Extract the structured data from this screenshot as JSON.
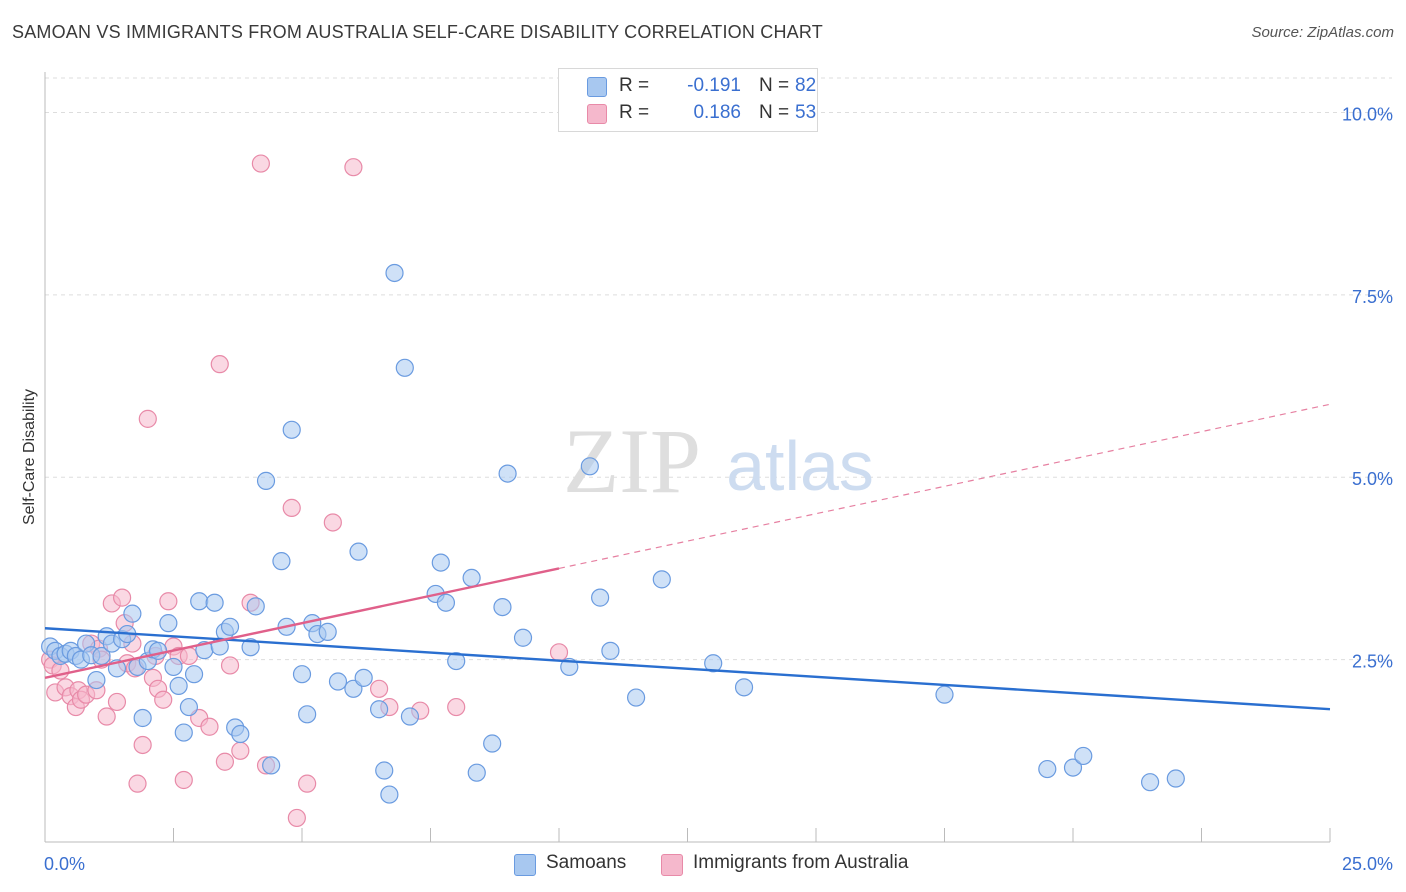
{
  "header": {
    "title": "SAMOAN VS IMMIGRANTS FROM AUSTRALIA SELF-CARE DISABILITY CORRELATION CHART",
    "source": "Source: ZipAtlas.com"
  },
  "legend": {
    "r_label": "R =",
    "n_label": "N =",
    "rows": [
      {
        "r": "-0.191",
        "n": "82",
        "color": "#a8c8f0"
      },
      {
        "r": "0.186",
        "n": "53",
        "color": "#f5b8cc"
      }
    ]
  },
  "bottom_legend": [
    {
      "label": "Samoans",
      "color": "#a8c8f0"
    },
    {
      "label": "Immigrants from Australia",
      "color": "#f5b8cc"
    }
  ],
  "watermark": {
    "part1": "ZIP",
    "part2": "atlas"
  },
  "colors": {
    "samoans_fill": "#a8c8f0",
    "samoans_stroke": "#6a9be0",
    "samoans_line": "#2a6fd0",
    "australia_fill": "#f5b8cc",
    "australia_stroke": "#e88aa8",
    "australia_line": "#e0608a",
    "tick_label": "#3a6fd0",
    "grid": "#dddddd"
  },
  "chart_data": {
    "type": "scatter",
    "title": "SAMOAN VS IMMIGRANTS FROM AUSTRALIA SELF-CARE DISABILITY CORRELATION CHART",
    "xlabel": "",
    "ylabel": "Self-Care Disability",
    "xlim": [
      0,
      25
    ],
    "ylim": [
      0,
      10.5
    ],
    "x_tick_labels": [
      {
        "value": 0,
        "label": "0.0%"
      },
      {
        "value": 25,
        "label": "25.0%"
      }
    ],
    "y_tick_labels": [
      {
        "value": 2.5,
        "label": "2.5%"
      },
      {
        "value": 5.0,
        "label": "5.0%"
      },
      {
        "value": 7.5,
        "label": "7.5%"
      },
      {
        "value": 10.0,
        "label": "10.0%"
      }
    ],
    "grid": true,
    "series": [
      {
        "name": "Samoans",
        "r": -0.191,
        "n": 82,
        "trend": {
          "x": [
            0,
            25
          ],
          "y": [
            2.93,
            1.82
          ],
          "solid_until": 25
        },
        "points": [
          [
            0.1,
            2.68
          ],
          [
            0.2,
            2.62
          ],
          [
            0.3,
            2.55
          ],
          [
            0.4,
            2.58
          ],
          [
            0.5,
            2.62
          ],
          [
            0.6,
            2.55
          ],
          [
            0.7,
            2.5
          ],
          [
            0.8,
            2.72
          ],
          [
            0.9,
            2.56
          ],
          [
            1.0,
            2.22
          ],
          [
            1.1,
            2.55
          ],
          [
            1.2,
            2.82
          ],
          [
            1.3,
            2.72
          ],
          [
            1.4,
            2.38
          ],
          [
            1.5,
            2.78
          ],
          [
            1.6,
            2.85
          ],
          [
            1.7,
            3.13
          ],
          [
            1.8,
            2.4
          ],
          [
            1.9,
            1.7
          ],
          [
            2.0,
            2.48
          ],
          [
            2.1,
            2.64
          ],
          [
            2.2,
            2.62
          ],
          [
            2.4,
            3.0
          ],
          [
            2.5,
            2.4
          ],
          [
            2.6,
            2.14
          ],
          [
            2.7,
            1.5
          ],
          [
            2.8,
            1.85
          ],
          [
            2.9,
            2.3
          ],
          [
            3.0,
            3.3
          ],
          [
            3.1,
            2.63
          ],
          [
            3.3,
            3.28
          ],
          [
            3.4,
            2.68
          ],
          [
            3.5,
            2.88
          ],
          [
            3.6,
            2.95
          ],
          [
            3.7,
            1.57
          ],
          [
            3.8,
            1.48
          ],
          [
            4.0,
            2.67
          ],
          [
            4.1,
            3.23
          ],
          [
            4.3,
            4.95
          ],
          [
            4.4,
            1.05
          ],
          [
            4.6,
            3.85
          ],
          [
            4.7,
            2.95
          ],
          [
            4.8,
            5.65
          ],
          [
            5.0,
            2.3
          ],
          [
            5.1,
            1.75
          ],
          [
            5.2,
            3.0
          ],
          [
            5.3,
            2.85
          ],
          [
            5.5,
            2.88
          ],
          [
            5.7,
            2.2
          ],
          [
            6.0,
            2.1
          ],
          [
            6.1,
            3.98
          ],
          [
            6.2,
            2.25
          ],
          [
            6.5,
            1.82
          ],
          [
            6.6,
            0.98
          ],
          [
            6.7,
            0.65
          ],
          [
            6.8,
            7.8
          ],
          [
            7.0,
            6.5
          ],
          [
            7.1,
            1.72
          ],
          [
            7.6,
            3.4
          ],
          [
            7.7,
            3.83
          ],
          [
            7.8,
            3.28
          ],
          [
            8.0,
            2.48
          ],
          [
            8.3,
            3.62
          ],
          [
            8.4,
            0.95
          ],
          [
            8.7,
            1.35
          ],
          [
            8.9,
            3.22
          ],
          [
            9.0,
            5.05
          ],
          [
            9.3,
            2.8
          ],
          [
            10.2,
            2.4
          ],
          [
            10.6,
            5.15
          ],
          [
            10.8,
            3.35
          ],
          [
            11.0,
            2.62
          ],
          [
            11.5,
            1.98
          ],
          [
            12.0,
            3.6
          ],
          [
            13.0,
            2.45
          ],
          [
            13.6,
            2.12
          ],
          [
            17.5,
            2.02
          ],
          [
            19.5,
            1.0
          ],
          [
            20.0,
            1.02
          ],
          [
            20.2,
            1.18
          ],
          [
            21.5,
            0.82
          ],
          [
            22.0,
            0.87
          ]
        ]
      },
      {
        "name": "Immigrants from Australia",
        "r": 0.186,
        "n": 53,
        "trend": {
          "x": [
            0,
            25
          ],
          "y": [
            2.25,
            6.0
          ],
          "solid_until": 10.0
        },
        "points": [
          [
            0.1,
            2.5
          ],
          [
            0.15,
            2.42
          ],
          [
            0.2,
            2.05
          ],
          [
            0.3,
            2.35
          ],
          [
            0.4,
            2.12
          ],
          [
            0.5,
            2.0
          ],
          [
            0.6,
            1.85
          ],
          [
            0.65,
            2.08
          ],
          [
            0.7,
            1.95
          ],
          [
            0.8,
            2.02
          ],
          [
            0.9,
            2.72
          ],
          [
            1.0,
            2.08
          ],
          [
            1.05,
            2.65
          ],
          [
            1.1,
            2.5
          ],
          [
            1.2,
            1.72
          ],
          [
            1.3,
            3.27
          ],
          [
            1.4,
            1.92
          ],
          [
            1.5,
            3.35
          ],
          [
            1.55,
            3.0
          ],
          [
            1.6,
            2.45
          ],
          [
            1.7,
            2.72
          ],
          [
            1.75,
            2.38
          ],
          [
            1.8,
            0.8
          ],
          [
            1.9,
            1.33
          ],
          [
            2.0,
            5.8
          ],
          [
            2.1,
            2.25
          ],
          [
            2.15,
            2.55
          ],
          [
            2.2,
            2.1
          ],
          [
            2.3,
            1.95
          ],
          [
            2.4,
            3.3
          ],
          [
            2.5,
            2.68
          ],
          [
            2.6,
            2.55
          ],
          [
            2.7,
            0.85
          ],
          [
            2.8,
            2.55
          ],
          [
            3.0,
            1.7
          ],
          [
            3.2,
            1.58
          ],
          [
            3.4,
            6.55
          ],
          [
            3.5,
            1.1
          ],
          [
            3.6,
            2.42
          ],
          [
            3.8,
            1.25
          ],
          [
            4.0,
            3.28
          ],
          [
            4.3,
            1.05
          ],
          [
            4.2,
            9.3
          ],
          [
            4.8,
            4.58
          ],
          [
            4.9,
            0.33
          ],
          [
            5.1,
            0.8
          ],
          [
            5.6,
            4.38
          ],
          [
            6.0,
            9.25
          ],
          [
            6.5,
            2.1
          ],
          [
            6.7,
            1.85
          ],
          [
            7.3,
            1.8
          ],
          [
            8.0,
            1.85
          ],
          [
            10.0,
            2.6
          ]
        ]
      }
    ]
  }
}
